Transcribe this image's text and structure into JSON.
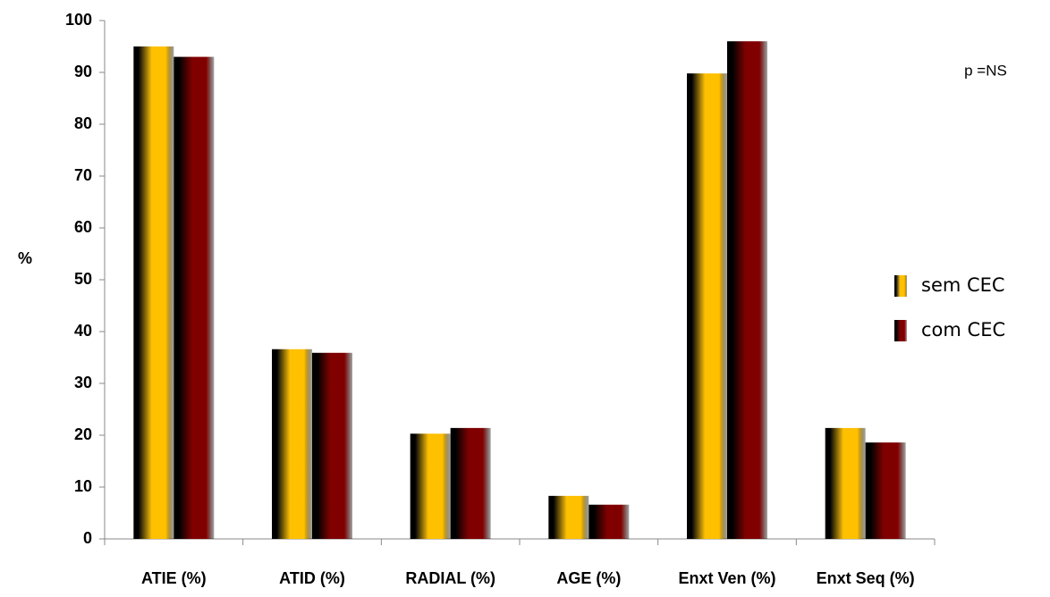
{
  "chart_data": {
    "type": "bar",
    "y_label": "%",
    "annotation": "p =NS",
    "categories": [
      "ATIE (%)",
      "ATID (%)",
      "RADIAL (%)",
      "AGE (%)",
      "Enxt Ven (%)",
      "Enxt Seq (%)"
    ],
    "series": [
      {
        "name": "sem CEC",
        "color": "#ffc000",
        "values": [
          95,
          36.6,
          20.3,
          8.3,
          89.8,
          21.4
        ]
      },
      {
        "name": "com CEC",
        "color": "#800000",
        "values": [
          93,
          35.9,
          21.4,
          6.6,
          96,
          18.6
        ]
      }
    ],
    "ylim": [
      0,
      100
    ],
    "yticks": [
      0,
      10,
      20,
      30,
      40,
      50,
      60,
      70,
      80,
      90,
      100
    ],
    "legend": "right"
  }
}
